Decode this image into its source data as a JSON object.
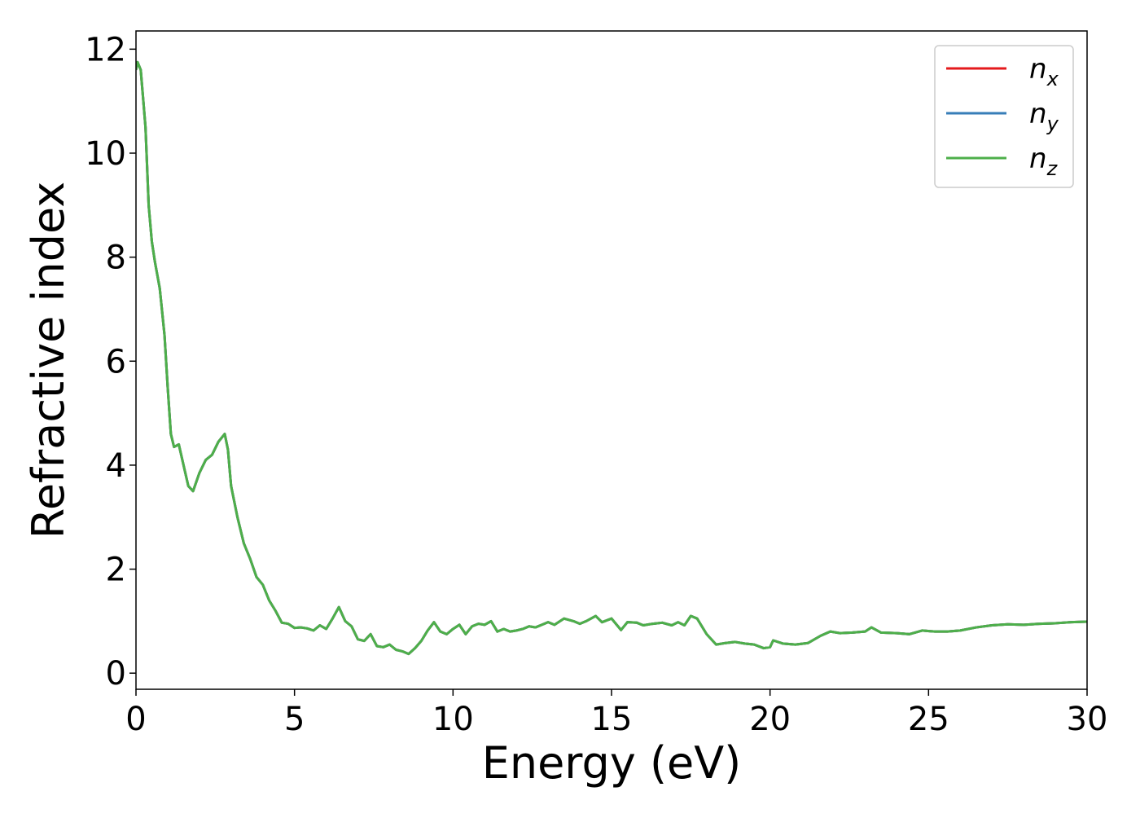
{
  "chart_data": {
    "type": "line",
    "xlabel": "Energy (eV)",
    "ylabel": "Refractive index",
    "x": [
      0,
      0.05,
      0.15,
      0.3,
      0.4,
      0.5,
      0.6,
      0.75,
      0.9,
      1.0,
      1.1,
      1.2,
      1.35,
      1.5,
      1.65,
      1.8,
      2.0,
      2.2,
      2.4,
      2.6,
      2.8,
      2.9,
      3.0,
      3.2,
      3.4,
      3.6,
      3.8,
      4.0,
      4.2,
      4.4,
      4.6,
      4.8,
      5.0,
      5.2,
      5.4,
      5.6,
      5.8,
      6.0,
      6.2,
      6.4,
      6.6,
      6.8,
      7.0,
      7.2,
      7.4,
      7.6,
      7.8,
      8.0,
      8.2,
      8.4,
      8.6,
      8.8,
      9.0,
      9.2,
      9.4,
      9.6,
      9.8,
      10.0,
      10.2,
      10.4,
      10.6,
      10.8,
      11.0,
      11.2,
      11.4,
      11.6,
      11.8,
      12.0,
      12.2,
      12.4,
      12.6,
      12.8,
      13.0,
      13.2,
      13.5,
      13.8,
      14.0,
      14.2,
      14.5,
      14.7,
      15.0,
      15.3,
      15.5,
      15.8,
      16.0,
      16.3,
      16.6,
      16.9,
      17.1,
      17.3,
      17.5,
      17.7,
      18.0,
      18.3,
      18.6,
      18.9,
      19.2,
      19.5,
      19.8,
      20.0,
      20.1,
      20.4,
      20.8,
      21.2,
      21.6,
      21.9,
      22.2,
      22.6,
      23.0,
      23.2,
      23.5,
      24.0,
      24.4,
      24.8,
      25.2,
      25.6,
      26.0,
      26.5,
      27.0,
      27.5,
      28.0,
      28.5,
      29.0,
      29.5,
      30.0
    ],
    "series": [
      {
        "name": "nx",
        "color": "#e41a1c",
        "values": [
          11.6,
          11.75,
          11.6,
          10.5,
          9,
          8.3,
          7.9,
          7.4,
          6.5,
          5.5,
          4.6,
          4.35,
          4.4,
          4.0,
          3.6,
          3.5,
          3.85,
          4.1,
          4.2,
          4.45,
          4.6,
          4.3,
          3.6,
          3.0,
          2.5,
          2.2,
          1.85,
          1.7,
          1.4,
          1.2,
          0.97,
          0.95,
          0.87,
          0.88,
          0.86,
          0.82,
          0.92,
          0.85,
          1.05,
          1.27,
          1.0,
          0.9,
          0.65,
          0.62,
          0.75,
          0.52,
          0.5,
          0.55,
          0.45,
          0.42,
          0.37,
          0.48,
          0.62,
          0.82,
          0.98,
          0.8,
          0.75,
          0.85,
          0.93,
          0.75,
          0.9,
          0.95,
          0.93,
          1.0,
          0.8,
          0.85,
          0.8,
          0.82,
          0.85,
          0.9,
          0.88,
          0.93,
          0.98,
          0.93,
          1.05,
          1.0,
          0.95,
          1.0,
          1.1,
          0.98,
          1.05,
          0.83,
          0.98,
          0.97,
          0.92,
          0.95,
          0.97,
          0.92,
          0.98,
          0.92,
          1.1,
          1.05,
          0.75,
          0.55,
          0.58,
          0.6,
          0.57,
          0.55,
          0.48,
          0.5,
          0.63,
          0.57,
          0.55,
          0.58,
          0.72,
          0.8,
          0.77,
          0.78,
          0.8,
          0.88,
          0.78,
          0.77,
          0.75,
          0.82,
          0.8,
          0.8,
          0.82,
          0.88,
          0.92,
          0.94,
          0.93,
          0.95,
          0.96,
          0.98,
          0.99
        ]
      },
      {
        "name": "ny",
        "color": "#377eb8",
        "values": [
          11.6,
          11.75,
          11.6,
          10.5,
          9,
          8.3,
          7.9,
          7.4,
          6.5,
          5.5,
          4.6,
          4.35,
          4.4,
          4.0,
          3.6,
          3.5,
          3.85,
          4.1,
          4.2,
          4.45,
          4.6,
          4.3,
          3.6,
          3.0,
          2.5,
          2.2,
          1.85,
          1.7,
          1.4,
          1.2,
          0.97,
          0.95,
          0.87,
          0.88,
          0.86,
          0.82,
          0.92,
          0.85,
          1.05,
          1.27,
          1.0,
          0.9,
          0.65,
          0.62,
          0.75,
          0.52,
          0.5,
          0.55,
          0.45,
          0.42,
          0.37,
          0.48,
          0.62,
          0.82,
          0.98,
          0.8,
          0.75,
          0.85,
          0.93,
          0.75,
          0.9,
          0.95,
          0.93,
          1.0,
          0.8,
          0.85,
          0.8,
          0.82,
          0.85,
          0.9,
          0.88,
          0.93,
          0.98,
          0.93,
          1.05,
          1.0,
          0.95,
          1.0,
          1.1,
          0.98,
          1.05,
          0.83,
          0.98,
          0.97,
          0.92,
          0.95,
          0.97,
          0.92,
          0.98,
          0.92,
          1.1,
          1.05,
          0.75,
          0.55,
          0.58,
          0.6,
          0.57,
          0.55,
          0.48,
          0.5,
          0.63,
          0.57,
          0.55,
          0.58,
          0.72,
          0.8,
          0.77,
          0.78,
          0.8,
          0.88,
          0.78,
          0.77,
          0.75,
          0.82,
          0.8,
          0.8,
          0.82,
          0.88,
          0.92,
          0.94,
          0.93,
          0.95,
          0.96,
          0.98,
          0.99
        ]
      },
      {
        "name": "nz",
        "color": "#4daf4a",
        "values": [
          11.6,
          11.75,
          11.6,
          10.5,
          9,
          8.3,
          7.9,
          7.4,
          6.5,
          5.5,
          4.6,
          4.35,
          4.4,
          4.0,
          3.6,
          3.5,
          3.85,
          4.1,
          4.2,
          4.45,
          4.6,
          4.3,
          3.6,
          3.0,
          2.5,
          2.2,
          1.85,
          1.7,
          1.4,
          1.2,
          0.97,
          0.95,
          0.87,
          0.88,
          0.86,
          0.82,
          0.92,
          0.85,
          1.05,
          1.27,
          1.0,
          0.9,
          0.65,
          0.62,
          0.75,
          0.52,
          0.5,
          0.55,
          0.45,
          0.42,
          0.37,
          0.48,
          0.62,
          0.82,
          0.98,
          0.8,
          0.75,
          0.85,
          0.93,
          0.75,
          0.9,
          0.95,
          0.93,
          1.0,
          0.8,
          0.85,
          0.8,
          0.82,
          0.85,
          0.9,
          0.88,
          0.93,
          0.98,
          0.93,
          1.05,
          1.0,
          0.95,
          1.0,
          1.1,
          0.98,
          1.05,
          0.83,
          0.98,
          0.97,
          0.92,
          0.95,
          0.97,
          0.92,
          0.98,
          0.92,
          1.1,
          1.05,
          0.75,
          0.55,
          0.58,
          0.6,
          0.57,
          0.55,
          0.48,
          0.5,
          0.63,
          0.57,
          0.55,
          0.58,
          0.72,
          0.8,
          0.77,
          0.78,
          0.8,
          0.88,
          0.78,
          0.77,
          0.75,
          0.82,
          0.8,
          0.8,
          0.82,
          0.88,
          0.92,
          0.94,
          0.93,
          0.95,
          0.96,
          0.98,
          0.99
        ]
      }
    ],
    "xlim": [
      0,
      30
    ],
    "xticks": [
      0,
      5,
      10,
      15,
      20,
      25,
      30
    ],
    "ylim": [
      -0.31,
      12.35
    ],
    "yticks": [
      0,
      2,
      4,
      6,
      8,
      10,
      12
    ],
    "grid": false,
    "legend": "upper right"
  }
}
